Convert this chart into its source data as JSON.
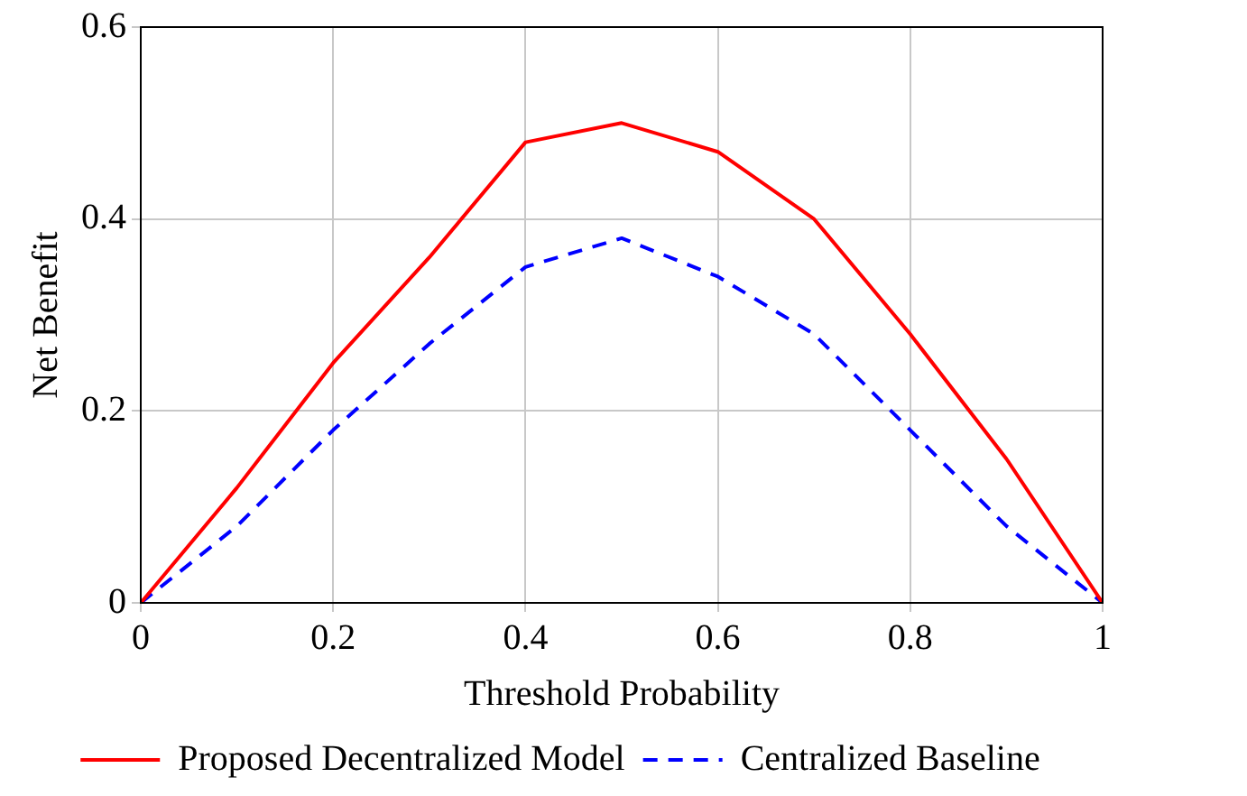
{
  "chart_data": {
    "type": "line",
    "xlabel": "Threshold Probability",
    "ylabel": "Net Benefit",
    "x": [
      0,
      0.1,
      0.2,
      0.3,
      0.4,
      0.5,
      0.6,
      0.7,
      0.8,
      0.9,
      1
    ],
    "series": [
      {
        "name": "Proposed Decentralized Model",
        "color": "#ff0000",
        "line_style": "solid",
        "values": [
          0,
          0.12,
          0.25,
          0.36,
          0.48,
          0.5,
          0.47,
          0.4,
          0.28,
          0.15,
          0
        ]
      },
      {
        "name": "Centralized Baseline",
        "color": "#0000ff",
        "line_style": "dashed",
        "values": [
          0,
          0.08,
          0.18,
          0.27,
          0.35,
          0.38,
          0.34,
          0.28,
          0.18,
          0.08,
          0
        ]
      }
    ],
    "xlim": [
      0,
      1
    ],
    "xticks": [
      0,
      0.2,
      0.4,
      0.6,
      0.8,
      1
    ],
    "ylim": [
      0,
      0.6
    ],
    "yticks": [
      0,
      0.2,
      0.4,
      0.6
    ],
    "grid": true,
    "legend": "bottom",
    "marker": "none"
  }
}
